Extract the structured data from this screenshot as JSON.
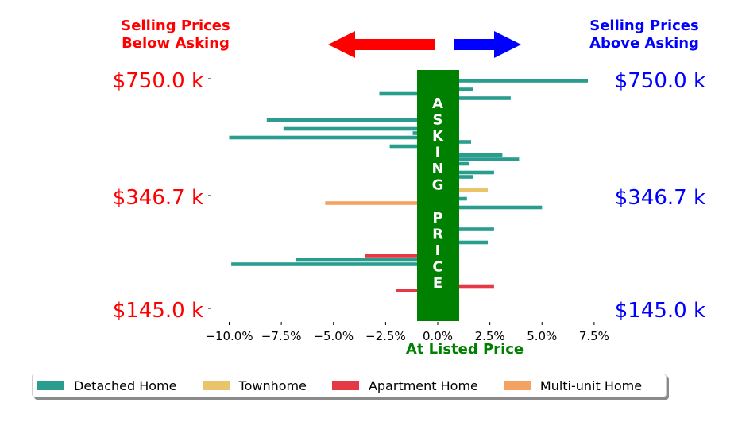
{
  "header": {
    "left_line1": "Selling Prices",
    "left_line2": "Below Asking",
    "right_line1": "Selling Prices",
    "right_line2": "Above Asking"
  },
  "colors": {
    "below": "#ff0000",
    "above": "#0000ff",
    "center_box": "#008000"
  },
  "center_box": {
    "label_top": "ASKING",
    "label_bottom": "PRICE",
    "caption": "At Listed Price"
  },
  "price_labels": {
    "left": [
      "$750.0 k",
      "$346.7 k",
      "$145.0 k"
    ],
    "right": [
      "$750.0 k",
      "$346.7 k",
      "$145.0 k"
    ]
  },
  "legend": [
    {
      "label": "Detached Home",
      "color": "#2a9d8f"
    },
    {
      "label": "Townhome",
      "color": "#e9c46a"
    },
    {
      "label": "Apartment Home",
      "color": "#e63946"
    },
    {
      "label": "Multi-unit Home",
      "color": "#f4a261"
    }
  ],
  "chart_data": {
    "type": "bar",
    "orientation": "horizontal",
    "xlabel": "At Listed Price",
    "xlim": [
      -10.5,
      8.5
    ],
    "xticks": [
      "−10.0%",
      "−7.5%",
      "−5.0%",
      "−2.5%",
      "0.0%",
      "2.5%",
      "5.0%",
      "7.5%"
    ],
    "xtick_values": [
      -10,
      -7.5,
      -5,
      -2.5,
      0,
      2.5,
      5,
      7.5
    ],
    "ylabel": "",
    "yticks": [
      "$750.0 k",
      "$346.7 k",
      "$145.0 k"
    ],
    "bars": [
      {
        "category": "Detached Home",
        "pct": 7.2
      },
      {
        "category": "Detached Home",
        "pct": 0.6
      },
      {
        "category": "Detached Home",
        "pct": 1.7
      },
      {
        "category": "Detached Home",
        "pct": -2.8
      },
      {
        "category": "Detached Home",
        "pct": 3.5
      },
      {
        "category": "Detached Home",
        "pct": 0.6
      },
      {
        "category": "Detached Home",
        "pct": 0.6
      },
      {
        "category": "Detached Home",
        "pct": 0.6
      },
      {
        "category": "Detached Home",
        "pct": 0.6
      },
      {
        "category": "Detached Home",
        "pct": -8.2
      },
      {
        "category": "Detached Home",
        "pct": 0.6
      },
      {
        "category": "Detached Home",
        "pct": -7.4
      },
      {
        "category": "Detached Home",
        "pct": -1.2
      },
      {
        "category": "Detached Home",
        "pct": -10.0
      },
      {
        "category": "Detached Home",
        "pct": 1.6
      },
      {
        "category": "Detached Home",
        "pct": -2.3
      },
      {
        "category": "Detached Home",
        "pct": 0.6
      },
      {
        "category": "Detached Home",
        "pct": 3.1
      },
      {
        "category": "Detached Home",
        "pct": 3.9
      },
      {
        "category": "Detached Home",
        "pct": 1.5
      },
      {
        "category": "Detached Home",
        "pct": 0.6
      },
      {
        "category": "Detached Home",
        "pct": 2.7
      },
      {
        "category": "Detached Home",
        "pct": 1.7
      },
      {
        "category": "Detached Home",
        "pct": 0.6
      },
      {
        "category": "Detached Home",
        "pct": 0.6
      },
      {
        "category": "Townhome",
        "pct": 2.4
      },
      {
        "category": "Detached Home",
        "pct": 0.6
      },
      {
        "category": "Detached Home",
        "pct": 1.4
      },
      {
        "category": "Multi-unit Home",
        "pct": -5.4
      },
      {
        "category": "Detached Home",
        "pct": 5.0
      },
      {
        "category": "Townhome",
        "pct": 0.6
      },
      {
        "category": "Townhome",
        "pct": 0.6
      },
      {
        "category": "Detached Home",
        "pct": 0.6
      },
      {
        "category": "Detached Home",
        "pct": 0.6
      },
      {
        "category": "Detached Home",
        "pct": 2.7
      },
      {
        "category": "Apartment Home",
        "pct": 0.6
      },
      {
        "category": "Townhome",
        "pct": 0.6
      },
      {
        "category": "Detached Home",
        "pct": 2.4
      },
      {
        "category": "Townhome",
        "pct": 0.6
      },
      {
        "category": "Townhome",
        "pct": 0.6
      },
      {
        "category": "Apartment Home",
        "pct": -3.5
      },
      {
        "category": "Detached Home",
        "pct": -6.8
      },
      {
        "category": "Detached Home",
        "pct": -9.9
      },
      {
        "category": "Detached Home",
        "pct": 0.6
      },
      {
        "category": "Detached Home",
        "pct": 0.6
      },
      {
        "category": "Apartment Home",
        "pct": 0.6
      },
      {
        "category": "Detached Home",
        "pct": 0.6
      },
      {
        "category": "Apartment Home",
        "pct": 2.7
      },
      {
        "category": "Apartment Home",
        "pct": -2.0
      }
    ]
  }
}
